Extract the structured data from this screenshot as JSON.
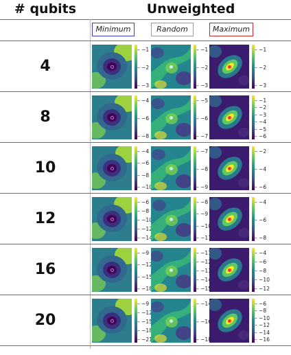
{
  "header": {
    "qubits_label": "# qubits",
    "title": "Unweighted"
  },
  "columns": [
    {
      "label": "Minimum",
      "border_color": "#3a3ac8",
      "marker_fill": "none",
      "marker_stroke": "#9b8cff",
      "variant": "min"
    },
    {
      "label": "Random",
      "border_color": "#9a9a9a",
      "marker_fill": "#cfe9ee",
      "marker_stroke": "#cfe9ee",
      "variant": "rand"
    },
    {
      "label": "Maximum",
      "border_color": "#c8262a",
      "marker_fill": "#e23b3b",
      "marker_stroke": "#e23b3b",
      "variant": "max"
    }
  ],
  "rows": [
    {
      "qubits": "4",
      "colorbars": [
        [
          "-1",
          "-2",
          "-3"
        ],
        [
          "-1",
          "-2",
          "-3"
        ],
        [
          "-1",
          "-2",
          "-3"
        ]
      ]
    },
    {
      "qubits": "8",
      "colorbars": [
        [
          "-4",
          "-6",
          "-8"
        ],
        [
          "-5",
          "-6",
          "-7"
        ],
        [
          "-1",
          "-2",
          "-3",
          "-4",
          "-5",
          "-6"
        ]
      ]
    },
    {
      "qubits": "10",
      "colorbars": [
        [
          "-4",
          "-6",
          "-8",
          "-10"
        ],
        [
          "-7",
          "-8",
          "-9"
        ],
        [
          "-2",
          "-4",
          "-6"
        ]
      ]
    },
    {
      "qubits": "12",
      "colorbars": [
        [
          "-6",
          "-8",
          "-10",
          "-12",
          "-14"
        ],
        [
          "-8",
          "-9",
          "-10",
          "-11"
        ],
        [
          "-4",
          "-6",
          "-8"
        ]
      ]
    },
    {
      "qubits": "16",
      "colorbars": [
        [
          "-9",
          "-12",
          "-15",
          "-18"
        ],
        [
          "-11",
          "-12",
          "-13",
          "-14",
          "-15"
        ],
        [
          "-4",
          "-6",
          "-8",
          "-10",
          "-12"
        ]
      ]
    },
    {
      "qubits": "20",
      "colorbars": [
        [
          "-9",
          "-12",
          "-15",
          "-18",
          "-21"
        ],
        [
          "-14",
          "-16",
          "-18"
        ],
        [
          "-6",
          "-8",
          "-10",
          "-12",
          "-14",
          "-16"
        ]
      ]
    }
  ],
  "colors": {
    "viridis_dark": "#440154",
    "viridis_mid": "#21918c",
    "viridis_light": "#fde725"
  }
}
